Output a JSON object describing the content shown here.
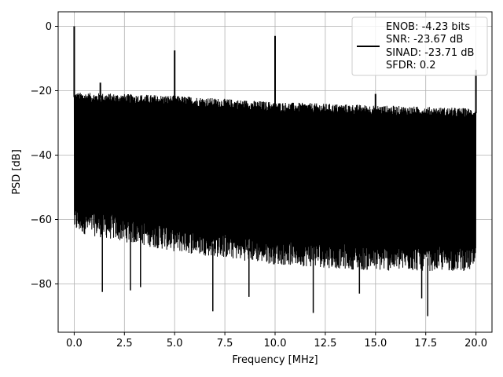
{
  "chart_data": {
    "type": "line",
    "xlabel": "Frequency [MHz]",
    "ylabel": "PSD [dB]",
    "xlim": [
      -0.8,
      20.8
    ],
    "ylim": [
      -95,
      4.5
    ],
    "xticks": [
      0.0,
      2.5,
      5.0,
      7.5,
      10.0,
      12.5,
      15.0,
      17.5,
      20.0
    ],
    "xtick_labels": [
      "0.0",
      "2.5",
      "5.0",
      "7.5",
      "10.0",
      "12.5",
      "15.0",
      "17.5",
      "20.0"
    ],
    "yticks": [
      0,
      -20,
      -40,
      -60,
      -80
    ],
    "ytick_labels": [
      "0",
      "−20",
      "−40",
      "−60",
      "−80"
    ],
    "grid": true,
    "legend_position": "top-right",
    "legend_lines": [
      "ENOB: -4.23 bits",
      "SNR: -23.67 dB",
      "SINAD: -23.71 dB",
      "SFDR: 0.2"
    ],
    "series": [
      {
        "color": "#000000",
        "noise_floor": {
          "x_range": [
            0.0,
            20.0
          ],
          "upper_envelope": [
            [
              0.0,
              -22
            ],
            [
              5.0,
              -23
            ],
            [
              10.0,
              -25
            ],
            [
              15.0,
              -26
            ],
            [
              20.0,
              -27
            ]
          ],
          "lower_typical": [
            [
              0.0,
              -60
            ],
            [
              5.0,
              -66
            ],
            [
              10.0,
              -70
            ],
            [
              15.0,
              -72
            ],
            [
              20.0,
              -72
            ]
          ]
        },
        "peaks": [
          {
            "x": 0.0,
            "y": 0.0
          },
          {
            "x": 1.3,
            "y": -17.5
          },
          {
            "x": 5.0,
            "y": -7.5
          },
          {
            "x": 10.0,
            "y": -3.0
          },
          {
            "x": 15.0,
            "y": -21.0
          },
          {
            "x": 20.0,
            "y": -13.5
          }
        ],
        "dips": [
          {
            "x": 1.4,
            "y": -82.5
          },
          {
            "x": 2.8,
            "y": -82
          },
          {
            "x": 3.3,
            "y": -81
          },
          {
            "x": 6.9,
            "y": -88.5
          },
          {
            "x": 8.7,
            "y": -84
          },
          {
            "x": 11.9,
            "y": -89
          },
          {
            "x": 14.2,
            "y": -83
          },
          {
            "x": 17.3,
            "y": -84.5
          },
          {
            "x": 17.6,
            "y": -90
          }
        ]
      }
    ]
  }
}
